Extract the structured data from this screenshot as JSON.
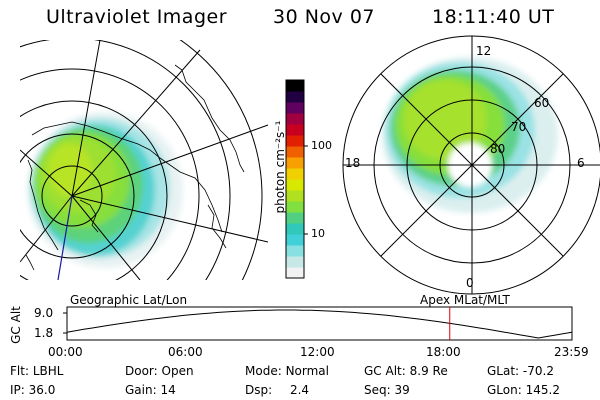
{
  "header": {
    "instrument": "Ultraviolet Imager",
    "date": "30 Nov 07",
    "time": "18:11:40 UT"
  },
  "left_map": {
    "caption": "Geographic Lat/Lon"
  },
  "right_map": {
    "caption": "Apex  MLat/MLT",
    "mlt_labels": {
      "top": "12",
      "left": "18",
      "right": "6",
      "bottom": "0"
    },
    "mlat_labels": [
      "60",
      "70",
      "80"
    ]
  },
  "colorbar": {
    "unit_label": "photon cm⁻²s⁻¹",
    "tick_labels": [
      "100",
      "10"
    ],
    "tick_values": [
      100,
      10
    ],
    "scale": "log",
    "colors": [
      "#f2f2f2",
      "#c8e8e8",
      "#88e0e0",
      "#40d0d8",
      "#30c8b8",
      "#50d080",
      "#80e040",
      "#b0e020",
      "#d8e800",
      "#f0d000",
      "#f8a000",
      "#f06000",
      "#e02000",
      "#c80020",
      "#a00040",
      "#600060",
      "#200040",
      "#000000"
    ]
  },
  "timeline": {
    "ylabel": "GC Alt",
    "y_ticks": [
      "9.0",
      "1.8"
    ],
    "x_ticks": [
      "00:00",
      "06:00",
      "12:00",
      "18:00",
      "23:59"
    ],
    "current_time_hours": 18.19,
    "marker_color": "#e00000"
  },
  "footer": {
    "filter_label": "Flt:",
    "filter_value": "LBHL",
    "ip_label": "IP:",
    "ip_value": "36.0",
    "door_label": "Door:",
    "door_value": "Open",
    "gain_label": "Gain:",
    "gain_value": "14",
    "mode_label": "Mode:",
    "mode_value": "Normal",
    "dsp_label": "Dsp:",
    "dsp_value": "2.4",
    "gcalt_label": "GC Alt:",
    "gcalt_value": "8.9 Re",
    "seq_label": "Seq:",
    "seq_value": "39",
    "glat_label": "GLat:",
    "glat_value": "-70.2",
    "glon_label": "GLon:",
    "glon_value": "145.2"
  }
}
